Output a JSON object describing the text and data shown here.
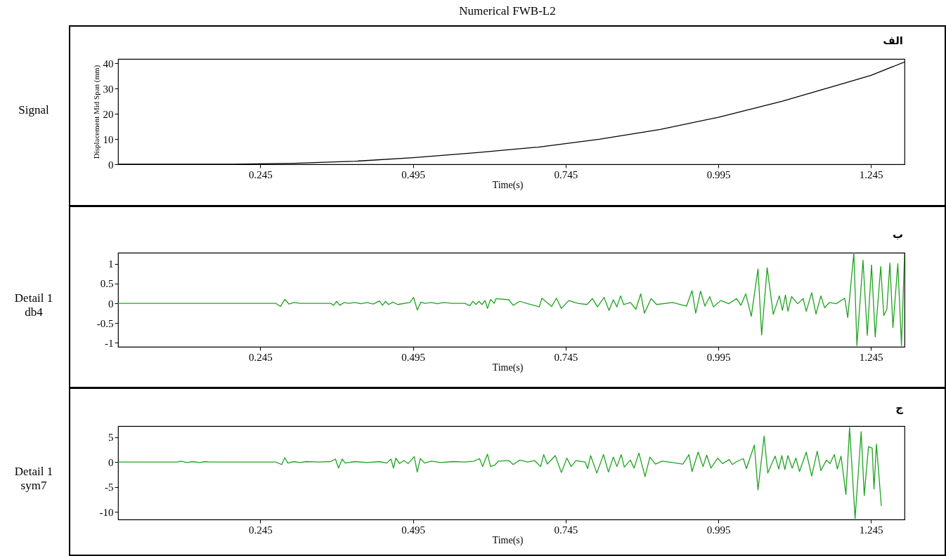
{
  "chart_data": [
    {
      "type": "line",
      "title": "Numerical FWB-L2",
      "ylabel": "Displacement Mid Span (mm)",
      "xlabel": "Time(s)",
      "annotations": [
        "الف",
        "Signal"
      ],
      "xlim": [
        0.012,
        1.3
      ],
      "xticks": [
        0.245,
        0.495,
        0.745,
        0.995,
        1.245
      ],
      "ylim": [
        0,
        41.7
      ],
      "yticks": [
        0,
        10,
        20,
        30,
        40
      ],
      "grid": false,
      "series": [
        {
          "color": "#000000",
          "x": [
            0.012,
            0.2,
            0.3,
            0.4,
            0.495,
            0.6,
            0.7,
            0.8,
            0.9,
            0.995,
            1.1,
            1.2,
            1.245,
            1.3
          ],
          "values": [
            0,
            0,
            0.4,
            1.2,
            2.6,
            4.6,
            6.8,
            9.9,
            13.8,
            18.6,
            25,
            32,
            35.2,
            40.5
          ]
        }
      ]
    },
    {
      "type": "line",
      "xlabel": "Time(s)",
      "annotations": [
        "ب",
        "Detail 1\ndb4"
      ],
      "xlim": [
        0.012,
        1.3
      ],
      "xticks": [
        0.245,
        0.495,
        0.745,
        0.995,
        1.245
      ],
      "ylim": [
        -1.1,
        1.28
      ],
      "yticks": [
        -1,
        -0.5,
        0,
        0.5,
        1
      ],
      "grid": false,
      "series": [
        {
          "color": "#1fa31f",
          "x": [
            0.012,
            0.27,
            0.278,
            0.285,
            0.292,
            0.3,
            0.31,
            0.36,
            0.365,
            0.37,
            0.375,
            0.382,
            0.39,
            0.4,
            0.41,
            0.42,
            0.43,
            0.44,
            0.445,
            0.45,
            0.455,
            0.462,
            0.47,
            0.49,
            0.496,
            0.502,
            0.508,
            0.515,
            0.525,
            0.535,
            0.545,
            0.56,
            0.58,
            0.588,
            0.593,
            0.598,
            0.603,
            0.608,
            0.613,
            0.617,
            0.622,
            0.628,
            0.631,
            0.652,
            0.659,
            0.67,
            0.683,
            0.702,
            0.706,
            0.722,
            0.73,
            0.738,
            0.75,
            0.765,
            0.78,
            0.789,
            0.797,
            0.808,
            0.816,
            0.823,
            0.829,
            0.835,
            0.84,
            0.851,
            0.86,
            0.868,
            0.874,
            0.885,
            0.894,
            0.92,
            0.943,
            0.952,
            0.958,
            0.966,
            0.973,
            0.981,
            0.987,
            0.999,
            1.012,
            1.025,
            1.032,
            1.04,
            1.049,
            1.06,
            1.066,
            1.075,
            1.085,
            1.095,
            1.1,
            1.105,
            1.109,
            1.115,
            1.125,
            1.134,
            1.139,
            1.148,
            1.155,
            1.163,
            1.169,
            1.177,
            1.188,
            1.202,
            1.207,
            1.217,
            1.222,
            1.232,
            1.239,
            1.246,
            1.252,
            1.261,
            1.266,
            1.271,
            1.276,
            1.281,
            1.289,
            1.295,
            1.3
          ],
          "values": [
            0,
            0,
            -0.08,
            0.1,
            -0.02,
            0.02,
            0,
            0,
            -0.05,
            0.05,
            -0.05,
            0.02,
            0,
            0.02,
            -0.01,
            0.02,
            -0.02,
            0.06,
            -0.05,
            0.05,
            -0.03,
            0.03,
            -0.03,
            0.02,
            0.15,
            -0.17,
            0.03,
            0,
            0.02,
            -0.01,
            0.02,
            0,
            0,
            -0.06,
            0.05,
            -0.03,
            0.05,
            -0.03,
            0.07,
            -0.13,
            0.1,
            0,
            0.12,
            0.09,
            -0.05,
            0.05,
            -0.01,
            -0.09,
            0.13,
            -0.08,
            0.13,
            -0.13,
            0.07,
            0,
            -0.03,
            0.12,
            -0.09,
            0.15,
            -0.18,
            0.09,
            -0.09,
            0.19,
            -0.03,
            0.02,
            -0.15,
            0.24,
            -0.25,
            0.12,
            -0.03,
            0.02,
            -0.07,
            0.32,
            -0.25,
            0.31,
            -0.07,
            0.17,
            -0.09,
            0.07,
            -0.01,
            0.12,
            -0.05,
            0.24,
            -0.33,
            0.87,
            -0.8,
            0.9,
            -0.28,
            0.19,
            -0.18,
            0.21,
            -0.2,
            0.17,
            -0.01,
            0.12,
            -0.2,
            0.27,
            -0.27,
            0.19,
            -0.11,
            0.02,
            -0.01,
            0.13,
            -0.36,
            1.28,
            -1.07,
            1.09,
            -0.81,
            0.97,
            -0.85,
            0.93,
            -0.31,
            -0.15,
            1.02,
            -0.61,
            1.0,
            -1.07,
            1.25
          ]
        }
      ]
    },
    {
      "type": "line",
      "xlabel": "Time(s)",
      "annotations": [
        "ج",
        "Detail 1\nsym7"
      ],
      "xlim": [
        0.012,
        1.3
      ],
      "xticks": [
        0.245,
        0.495,
        0.745,
        0.995,
        1.245
      ],
      "ylim": [
        -11.5,
        7.2
      ],
      "yticks": [
        -10,
        -5,
        0,
        5
      ],
      "grid": false,
      "series": [
        {
          "color": "#1fa31f",
          "x": [
            0.012,
            0.11,
            0.115,
            0.125,
            0.135,
            0.145,
            0.155,
            0.161,
            0.27,
            0.28,
            0.285,
            0.29,
            0.3,
            0.31,
            0.32,
            0.34,
            0.36,
            0.368,
            0.373,
            0.379,
            0.384,
            0.4,
            0.42,
            0.44,
            0.452,
            0.459,
            0.463,
            0.467,
            0.473,
            0.48,
            0.487,
            0.497,
            0.502,
            0.507,
            0.514,
            0.525,
            0.54,
            0.56,
            0.58,
            0.595,
            0.604,
            0.609,
            0.617,
            0.622,
            0.629,
            0.635,
            0.652,
            0.659,
            0.67,
            0.683,
            0.694,
            0.704,
            0.709,
            0.715,
            0.728,
            0.738,
            0.747,
            0.754,
            0.762,
            0.777,
            0.781,
            0.786,
            0.796,
            0.807,
            0.815,
            0.823,
            0.829,
            0.836,
            0.841,
            0.851,
            0.857,
            0.865,
            0.875,
            0.883,
            0.892,
            0.903,
            0.92,
            0.937,
            0.947,
            0.952,
            0.962,
            0.97,
            0.976,
            0.983,
            0.994,
            1.002,
            1.013,
            1.018,
            1.025,
            1.036,
            1.041,
            1.054,
            1.06,
            1.07,
            1.076,
            1.088,
            1.094,
            1.099,
            1.104,
            1.109,
            1.116,
            1.122,
            1.128,
            1.139,
            1.148,
            1.157,
            1.163,
            1.172,
            1.178,
            1.185,
            1.19,
            1.196,
            1.204,
            1.21,
            1.219,
            1.229,
            1.234,
            1.241,
            1.247,
            1.25,
            1.254,
            1.262
          ],
          "values": [
            0,
            0,
            0.2,
            -0.1,
            0.1,
            -0.1,
            0.1,
            0,
            0,
            -0.5,
            0.9,
            -0.2,
            0.1,
            -0.1,
            0.1,
            0,
            0.1,
            0.6,
            -1.2,
            0.6,
            -0.2,
            0.1,
            -0.1,
            0.1,
            -0.2,
            0.6,
            -1.2,
            0.8,
            -0.3,
            0.3,
            -0.3,
            1.1,
            -2.0,
            0.7,
            -0.2,
            0.2,
            -0.1,
            0.1,
            0,
            0.2,
            0.7,
            -0.9,
            1.6,
            -0.9,
            -0.6,
            0.2,
            0.3,
            -0.5,
            0.4,
            0,
            0.3,
            -0.9,
            1.5,
            -0.4,
            1.3,
            -2.1,
            0.8,
            -0.9,
            0.3,
            0,
            -1.3,
            1.3,
            -2.2,
            1.5,
            -2.0,
            1.0,
            -0.9,
            1.5,
            -1.0,
            0.4,
            -1.2,
            1.8,
            -2.9,
            1.0,
            -0.4,
            0.2,
            -0.1,
            -0.4,
            1.5,
            -1.9,
            2.0,
            -0.9,
            1.4,
            -1.2,
            0.8,
            -0.3,
            0.5,
            -0.5,
            0.1,
            0.7,
            -1.3,
            3.4,
            -5.6,
            5.2,
            -2.2,
            1.2,
            -1.4,
            1.3,
            -1.5,
            1.3,
            -1.2,
            0.8,
            -1.9,
            2.0,
            -2.8,
            2.2,
            -1.7,
            0.4,
            -0.3,
            1.5,
            -1.4,
            1.2,
            -6.5,
            6.9,
            -11.3,
            6.1,
            -6.7,
            3.1,
            2.8,
            -5.4,
            3.6,
            -8.8
          ]
        }
      ]
    }
  ]
}
